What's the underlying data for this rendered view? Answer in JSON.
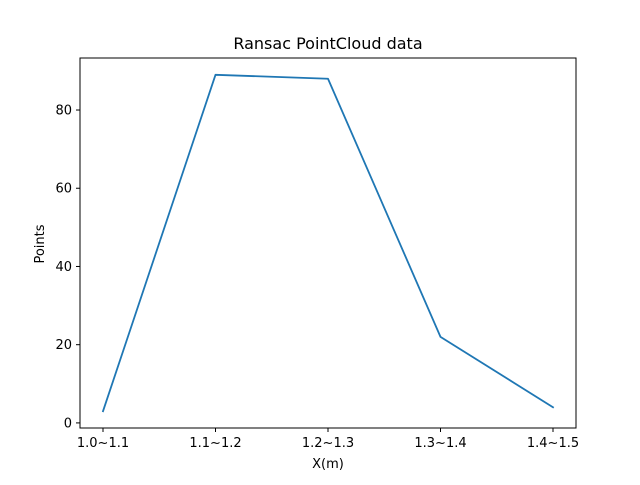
{
  "chart_data": {
    "type": "line",
    "title": "Ransac PointCloud data",
    "xlabel": "X(m)",
    "ylabel": "Points",
    "categories": [
      "1.0~1.1",
      "1.1~1.2",
      "1.2~1.3",
      "1.3~1.4",
      "1.4~1.5"
    ],
    "series": [
      {
        "values": [
          3,
          89,
          88,
          22,
          4
        ],
        "color": "#1f77b4"
      }
    ],
    "ylim": [
      -1.3,
      93.3
    ],
    "yticks": [
      0,
      20,
      40,
      60,
      80
    ],
    "grid": false,
    "legend": "none"
  }
}
